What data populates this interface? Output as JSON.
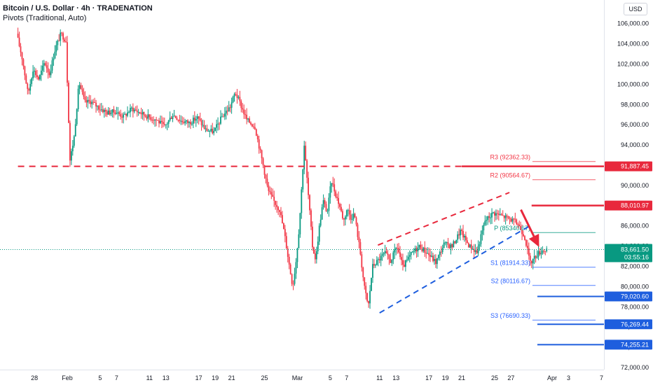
{
  "header": {
    "title": "Bitcoin / U.S. Dollar · 4h · TRADENATION",
    "indicator": "Pivots (Traditional, Auto)",
    "currency": "USD"
  },
  "colors": {
    "up": "#089981",
    "down": "#f23645",
    "resistance": "#e8283c",
    "support": "#1e5ede",
    "current": "#089981",
    "grid": "#f0f3fa"
  },
  "chart_data": {
    "type": "candlestick",
    "ylim": [
      72000,
      107500
    ],
    "y_ticks": [
      "106,000.00",
      "104,000.00",
      "102,000.00",
      "100,000.00",
      "98,000.00",
      "96,000.00",
      "94,000.00",
      "92,000.00",
      "90,000.00",
      "88,000.00",
      "86,000.00",
      "84,000.00",
      "82,000.00",
      "80,000.00",
      "78,000.00",
      "76,000.00",
      "74,000.00",
      "72,000.00"
    ],
    "y_tick_values": [
      106000,
      104000,
      102000,
      100000,
      98000,
      96000,
      94000,
      92000,
      90000,
      88000,
      86000,
      84000,
      82000,
      80000,
      78000,
      76000,
      74000,
      72000
    ],
    "x_ticks": [
      {
        "label": "28",
        "day": -4
      },
      {
        "label": "Feb",
        "day": 0
      },
      {
        "label": "5",
        "day": 4
      },
      {
        "label": "7",
        "day": 6
      },
      {
        "label": "11",
        "day": 10
      },
      {
        "label": "13",
        "day": 12
      },
      {
        "label": "17",
        "day": 16
      },
      {
        "label": "19",
        "day": 18
      },
      {
        "label": "21",
        "day": 20
      },
      {
        "label": "25",
        "day": 24
      },
      {
        "label": "Mar",
        "day": 28
      },
      {
        "label": "5",
        "day": 32
      },
      {
        "label": "7",
        "day": 34
      },
      {
        "label": "11",
        "day": 38
      },
      {
        "label": "13",
        "day": 40
      },
      {
        "label": "17",
        "day": 44
      },
      {
        "label": "19",
        "day": 46
      },
      {
        "label": "21",
        "day": 48
      },
      {
        "label": "25",
        "day": 52
      },
      {
        "label": "27",
        "day": 54
      },
      {
        "label": "Apr",
        "day": 59
      },
      {
        "label": "3",
        "day": 61
      },
      {
        "label": "7",
        "day": 65
      }
    ],
    "price_path": [
      [
        -6,
        105000
      ],
      [
        -5.3,
        102500
      ],
      [
        -4.6,
        99000
      ],
      [
        -4,
        101500
      ],
      [
        -3.3,
        100500
      ],
      [
        -2.6,
        102200
      ],
      [
        -2,
        101000
      ],
      [
        -1.3,
        103500
      ],
      [
        -0.6,
        105000
      ],
      [
        0,
        104300
      ],
      [
        0.5,
        92500
      ],
      [
        1,
        94800
      ],
      [
        1.6,
        100200
      ],
      [
        2.3,
        98200
      ],
      [
        3,
        98300
      ],
      [
        4,
        97700
      ],
      [
        5,
        97200
      ],
      [
        6,
        97300
      ],
      [
        7,
        96800
      ],
      [
        8,
        97600
      ],
      [
        9,
        97200
      ],
      [
        10,
        96800
      ],
      [
        11,
        96500
      ],
      [
        12,
        95800
      ],
      [
        13,
        97000
      ],
      [
        14,
        96400
      ],
      [
        15,
        96200
      ],
      [
        16,
        96700
      ],
      [
        17,
        95500
      ],
      [
        18,
        95300
      ],
      [
        19,
        96800
      ],
      [
        20,
        97800
      ],
      [
        20.6,
        99200
      ],
      [
        21,
        98500
      ],
      [
        22,
        96500
      ],
      [
        23,
        95800
      ],
      [
        24,
        92000
      ],
      [
        24.6,
        89500
      ],
      [
        25.2,
        88600
      ],
      [
        26,
        87600
      ],
      [
        26.6,
        85200
      ],
      [
        27.2,
        82000
      ],
      [
        27.6,
        80000
      ],
      [
        28,
        82500
      ],
      [
        28.4,
        86000
      ],
      [
        29,
        94000
      ],
      [
        29.5,
        89000
      ],
      [
        30,
        84000
      ],
      [
        30.4,
        82600
      ],
      [
        30.8,
        85700
      ],
      [
        31.3,
        88500
      ],
      [
        31.8,
        87300
      ],
      [
        32.3,
        90500
      ],
      [
        32.8,
        89200
      ],
      [
        33.3,
        88000
      ],
      [
        33.8,
        86500
      ],
      [
        34.2,
        87700
      ],
      [
        34.7,
        86800
      ],
      [
        35.1,
        87200
      ],
      [
        35.8,
        83500
      ],
      [
        36.3,
        80000
      ],
      [
        36.8,
        78000
      ],
      [
        37.3,
        82000
      ],
      [
        38,
        82600
      ],
      [
        38.8,
        83300
      ],
      [
        39.5,
        82500
      ],
      [
        40.3,
        84000
      ],
      [
        41,
        81900
      ],
      [
        42,
        83200
      ],
      [
        43,
        84000
      ],
      [
        44,
        83300
      ],
      [
        45,
        82400
      ],
      [
        46,
        84200
      ],
      [
        47,
        84000
      ],
      [
        48,
        85500
      ],
      [
        49,
        84100
      ],
      [
        50,
        83400
      ],
      [
        51,
        86500
      ],
      [
        52,
        87300
      ],
      [
        53,
        87000
      ],
      [
        54,
        86700
      ],
      [
        55,
        86200
      ],
      [
        55.8,
        85000
      ],
      [
        56.5,
        82300
      ],
      [
        57.3,
        83200
      ],
      [
        58,
        83600
      ],
      [
        58.5,
        83660
      ]
    ],
    "current_price": "83,661.50",
    "current_price_value": 83661.5,
    "countdown": "03:55:16",
    "pivots": [
      {
        "label": "R3 (92362.33)",
        "value": 92362.33,
        "color": "#f23645"
      },
      {
        "label": "R2 (90564.67)",
        "value": 90564.67,
        "color": "#f23645"
      },
      {
        "label": "P (85340.67)",
        "value": 85340.67,
        "color": "#089981"
      },
      {
        "label": "S1 (81914.33)",
        "value": 81914.33,
        "color": "#2962ff"
      },
      {
        "label": "S2 (80116.67)",
        "value": 80116.67,
        "color": "#2962ff"
      },
      {
        "label": "S3 (76690.33)",
        "value": 76690.33,
        "color": "#2962ff"
      }
    ],
    "price_tags": [
      {
        "label": "91,887.45",
        "value": 91887.45,
        "kind": "resistance"
      },
      {
        "label": "88,010.97",
        "value": 88010.97,
        "kind": "resistance"
      },
      {
        "label": "79,020.60",
        "value": 79020.6,
        "kind": "support"
      },
      {
        "label": "76,269.44",
        "value": 76269.44,
        "kind": "support"
      },
      {
        "label": "74,255.21",
        "value": 74255.21,
        "kind": "support"
      }
    ],
    "annotations": {
      "resistance_line": {
        "value": 91887.45,
        "dashed_from_day": -6,
        "dashed_to_day": 48
      },
      "resistance_88k": {
        "value": 88010.97,
        "from_day": 56.5
      },
      "channel_upper": [
        [
          37.8,
          84100
        ],
        [
          53.8,
          89300
        ]
      ],
      "channel_lower": [
        [
          38,
          77400
        ],
        [
          56.5,
          86100
        ]
      ],
      "arrow": {
        "from": [
          55.2,
          87600
        ],
        "to": [
          57.3,
          84100
        ]
      }
    }
  }
}
